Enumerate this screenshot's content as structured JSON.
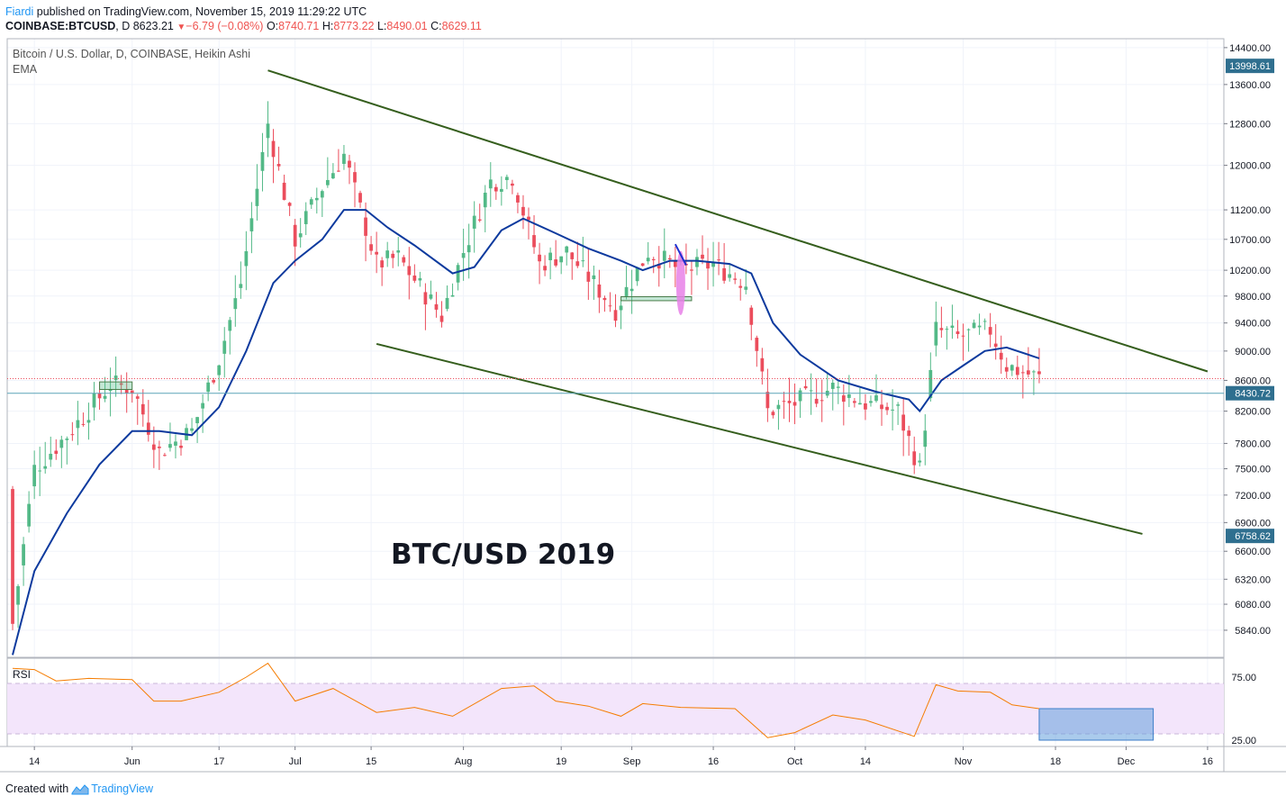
{
  "header": {
    "author": "Fiardi",
    "published_text": "published on TradingView.com, November 15, 2019 11:29:22 UTC",
    "symbol": "COINBASE:BTCUSD",
    "interval": "D",
    "last": "8623.21",
    "change": "−6.79 (−0.08%)",
    "o_label": "O:",
    "o_val": "8740.71",
    "h_label": "H:",
    "h_val": "8773.22",
    "l_label": "L:",
    "l_val": "8490.01",
    "c_label": "C:",
    "c_val": "8629.11"
  },
  "legend": {
    "title": "Bitcoin / U.S. Dollar, D, COINBASE, Heikin Ashi",
    "ema_label": "EMA"
  },
  "annotation": "BTC/USD 2019",
  "rsi_label": "RSI",
  "footer": {
    "created_with": "Created with",
    "brand": "TradingView"
  },
  "colors": {
    "up": "#53b987",
    "down": "#eb4d5c",
    "ema": "#0d3a9e",
    "trend": "#355e1d",
    "rsi": "#f57c00",
    "rsi_band": "#f3e5fb",
    "price_tag": "#2f6f8f",
    "marker": "#e880e8"
  },
  "chart_data": {
    "type": "candlestick",
    "title": "Bitcoin / U.S. Dollar, D, COINBASE, Heikin Ashi",
    "y_scale": "log",
    "ylim": [
      5600,
      14600
    ],
    "y_ticks": [
      14400,
      13600,
      12800,
      12000,
      11200,
      10700,
      10200,
      9800,
      9400,
      9000,
      8600,
      8200,
      7800,
      7500,
      7200,
      6900,
      6600,
      6320,
      6080,
      5840
    ],
    "y_tick_labels": [
      "14400.00",
      "13600.00",
      "12800.00",
      "12000.00",
      "11200.00",
      "10700.00",
      "10200.00",
      "9800.00",
      "9400.00",
      "9000.00",
      "8600.00",
      "8200.00",
      "7800.00",
      "7500.00",
      "7200.00",
      "6900.00",
      "6600.00",
      "6320.00",
      "6080.00",
      "5840.00"
    ],
    "price_tags": [
      {
        "value": 13998.61,
        "label": "13998.61"
      },
      {
        "value": 8430.72,
        "label": "8430.72"
      },
      {
        "value": 6758.62,
        "label": "6758.62"
      }
    ],
    "current_price": 8623.21,
    "x_range": [
      "2019-05-09",
      "2019-12-19"
    ],
    "x_ticks": [
      {
        "date": "2019-05-14",
        "label": "14"
      },
      {
        "date": "2019-06-01",
        "label": "Jun"
      },
      {
        "date": "2019-06-17",
        "label": "17"
      },
      {
        "date": "2019-07-01",
        "label": "Jul"
      },
      {
        "date": "2019-07-15",
        "label": "15"
      },
      {
        "date": "2019-08-01",
        "label": "Aug"
      },
      {
        "date": "2019-08-19",
        "label": "19"
      },
      {
        "date": "2019-09-01",
        "label": "Sep"
      },
      {
        "date": "2019-09-16",
        "label": "16"
      },
      {
        "date": "2019-10-01",
        "label": "Oct"
      },
      {
        "date": "2019-10-14",
        "label": "14"
      },
      {
        "date": "2019-11-01",
        "label": "Nov"
      },
      {
        "date": "2019-11-18",
        "label": "18"
      },
      {
        "date": "2019-12-01",
        "label": "Dec"
      },
      {
        "date": "2019-12-16",
        "label": "16"
      }
    ],
    "key_closes": [
      {
        "date": "2019-05-10",
        "close": 5900
      },
      {
        "date": "2019-05-14",
        "close": 7500
      },
      {
        "date": "2019-05-20",
        "close": 7900
      },
      {
        "date": "2019-05-28",
        "close": 8550
      },
      {
        "date": "2019-06-01",
        "close": 8500
      },
      {
        "date": "2019-06-06",
        "close": 7700
      },
      {
        "date": "2019-06-12",
        "close": 7950
      },
      {
        "date": "2019-06-17",
        "close": 8900
      },
      {
        "date": "2019-06-21",
        "close": 10000
      },
      {
        "date": "2019-06-26",
        "close": 12800
      },
      {
        "date": "2019-07-01",
        "close": 10700
      },
      {
        "date": "2019-07-06",
        "close": 11600
      },
      {
        "date": "2019-07-10",
        "close": 12200
      },
      {
        "date": "2019-07-16",
        "close": 10300
      },
      {
        "date": "2019-07-20",
        "close": 10400
      },
      {
        "date": "2019-07-28",
        "close": 9500
      },
      {
        "date": "2019-08-01",
        "close": 10500
      },
      {
        "date": "2019-08-06",
        "close": 11700
      },
      {
        "date": "2019-08-10",
        "close": 11800
      },
      {
        "date": "2019-08-15",
        "close": 10300
      },
      {
        "date": "2019-08-20",
        "close": 10500
      },
      {
        "date": "2019-08-29",
        "close": 9600
      },
      {
        "date": "2019-09-04",
        "close": 10500
      },
      {
        "date": "2019-09-10",
        "close": 10200
      },
      {
        "date": "2019-09-16",
        "close": 10300
      },
      {
        "date": "2019-09-22",
        "close": 10000
      },
      {
        "date": "2019-09-26",
        "close": 8200
      },
      {
        "date": "2019-10-01",
        "close": 8300
      },
      {
        "date": "2019-10-08",
        "close": 8500
      },
      {
        "date": "2019-10-14",
        "close": 8300
      },
      {
        "date": "2019-10-20",
        "close": 8200
      },
      {
        "date": "2019-10-24",
        "close": 7500
      },
      {
        "date": "2019-10-27",
        "close": 9300
      },
      {
        "date": "2019-10-31",
        "close": 9200
      },
      {
        "date": "2019-11-06",
        "close": 9300
      },
      {
        "date": "2019-11-09",
        "close": 8800
      },
      {
        "date": "2019-11-15",
        "close": 8629
      }
    ],
    "ema": {
      "name": "EMA",
      "points": [
        {
          "date": "2019-05-10",
          "value": 5620
        },
        {
          "date": "2019-05-14",
          "value": 6400
        },
        {
          "date": "2019-05-20",
          "value": 7000
        },
        {
          "date": "2019-05-26",
          "value": 7550
        },
        {
          "date": "2019-06-01",
          "value": 7950
        },
        {
          "date": "2019-06-06",
          "value": 7950
        },
        {
          "date": "2019-06-12",
          "value": 7900
        },
        {
          "date": "2019-06-17",
          "value": 8250
        },
        {
          "date": "2019-06-22",
          "value": 9000
        },
        {
          "date": "2019-06-27",
          "value": 10000
        },
        {
          "date": "2019-07-01",
          "value": 10350
        },
        {
          "date": "2019-07-06",
          "value": 10700
        },
        {
          "date": "2019-07-10",
          "value": 11200
        },
        {
          "date": "2019-07-14",
          "value": 11200
        },
        {
          "date": "2019-07-18",
          "value": 10900
        },
        {
          "date": "2019-07-23",
          "value": 10600
        },
        {
          "date": "2019-07-30",
          "value": 10150
        },
        {
          "date": "2019-08-03",
          "value": 10250
        },
        {
          "date": "2019-08-08",
          "value": 10850
        },
        {
          "date": "2019-08-12",
          "value": 11050
        },
        {
          "date": "2019-08-18",
          "value": 10800
        },
        {
          "date": "2019-08-24",
          "value": 10550
        },
        {
          "date": "2019-08-30",
          "value": 10350
        },
        {
          "date": "2019-09-03",
          "value": 10200
        },
        {
          "date": "2019-09-08",
          "value": 10350
        },
        {
          "date": "2019-09-13",
          "value": 10350
        },
        {
          "date": "2019-09-19",
          "value": 10300
        },
        {
          "date": "2019-09-23",
          "value": 10150
        },
        {
          "date": "2019-09-27",
          "value": 9400
        },
        {
          "date": "2019-10-02",
          "value": 8950
        },
        {
          "date": "2019-10-09",
          "value": 8600
        },
        {
          "date": "2019-10-16",
          "value": 8450
        },
        {
          "date": "2019-10-22",
          "value": 8350
        },
        {
          "date": "2019-10-24",
          "value": 8200
        },
        {
          "date": "2019-10-28",
          "value": 8600
        },
        {
          "date": "2019-11-01",
          "value": 8800
        },
        {
          "date": "2019-11-05",
          "value": 9000
        },
        {
          "date": "2019-11-09",
          "value": 9050
        },
        {
          "date": "2019-11-15",
          "value": 8900
        }
      ]
    },
    "trendlines": [
      {
        "from": {
          "date": "2019-06-26",
          "value": 13900
        },
        "to": {
          "date": "2019-12-16",
          "value": 8720
        }
      },
      {
        "from": {
          "date": "2019-07-16",
          "value": 9100
        },
        "to": {
          "date": "2019-12-04",
          "value": 6780
        }
      }
    ],
    "rsi": {
      "name": "RSI",
      "ylim": [
        20,
        90
      ],
      "band": [
        30,
        70
      ],
      "y_ticks": [
        75,
        25
      ],
      "y_tick_labels": [
        "75.00",
        "25.00"
      ],
      "points": [
        {
          "date": "2019-05-10",
          "value": 82
        },
        {
          "date": "2019-05-14",
          "value": 81
        },
        {
          "date": "2019-05-18",
          "value": 72
        },
        {
          "date": "2019-05-24",
          "value": 74
        },
        {
          "date": "2019-06-01",
          "value": 73
        },
        {
          "date": "2019-06-05",
          "value": 56
        },
        {
          "date": "2019-06-10",
          "value": 56
        },
        {
          "date": "2019-06-17",
          "value": 63
        },
        {
          "date": "2019-06-22",
          "value": 75
        },
        {
          "date": "2019-06-26",
          "value": 86
        },
        {
          "date": "2019-07-01",
          "value": 56
        },
        {
          "date": "2019-07-08",
          "value": 66
        },
        {
          "date": "2019-07-16",
          "value": 47
        },
        {
          "date": "2019-07-23",
          "value": 51
        },
        {
          "date": "2019-07-30",
          "value": 44
        },
        {
          "date": "2019-08-08",
          "value": 66
        },
        {
          "date": "2019-08-14",
          "value": 68
        },
        {
          "date": "2019-08-18",
          "value": 56
        },
        {
          "date": "2019-08-24",
          "value": 52
        },
        {
          "date": "2019-08-30",
          "value": 44
        },
        {
          "date": "2019-09-03",
          "value": 54
        },
        {
          "date": "2019-09-10",
          "value": 51
        },
        {
          "date": "2019-09-20",
          "value": 50
        },
        {
          "date": "2019-09-26",
          "value": 27
        },
        {
          "date": "2019-10-01",
          "value": 31
        },
        {
          "date": "2019-10-08",
          "value": 45
        },
        {
          "date": "2019-10-14",
          "value": 41
        },
        {
          "date": "2019-10-23",
          "value": 28
        },
        {
          "date": "2019-10-27",
          "value": 69
        },
        {
          "date": "2019-10-31",
          "value": 64
        },
        {
          "date": "2019-11-06",
          "value": 63
        },
        {
          "date": "2019-11-10",
          "value": 53
        },
        {
          "date": "2019-11-15",
          "value": 50
        }
      ]
    }
  }
}
